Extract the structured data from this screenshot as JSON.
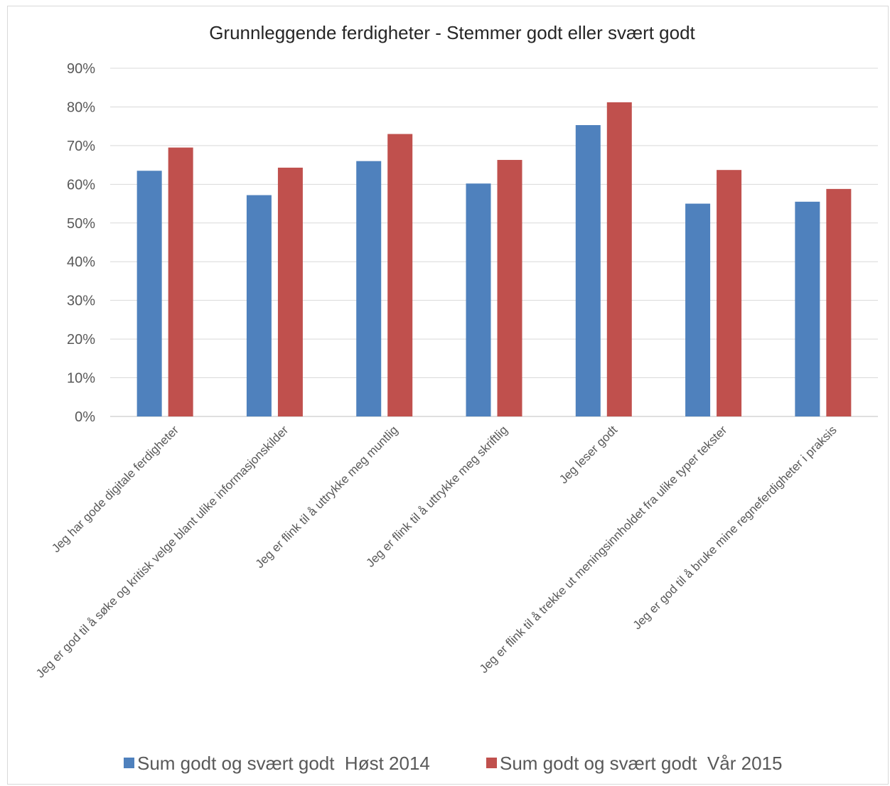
{
  "chart_data": {
    "type": "bar",
    "title": "Grunnleggende ferdigheter - Stemmer godt eller svært godt",
    "categories": [
      "Jeg har gode digitale ferdigheter",
      "Jeg er god til å søke og kritisk velge blant ulike informasjonskilder",
      "Jeg er flink til å uttrykke meg muntlig",
      "Jeg er flink til å uttrykke meg skriftlig",
      "Jeg leser godt",
      "Jeg er flink til å trekke ut meningsinnholdet fra ulike typer tekster",
      "Jeg er god til å bruke mine regneferdigheter i praksis"
    ],
    "series": [
      {
        "name": "Sum godt og svært godt  Høst 2014",
        "color": "#4f81bd",
        "values": [
          63.5,
          57.2,
          66.0,
          60.2,
          75.3,
          55.0,
          55.5
        ]
      },
      {
        "name": "Sum godt og svært godt  Vår 2015",
        "color": "#c0504d",
        "values": [
          69.5,
          64.3,
          73.0,
          66.3,
          81.2,
          63.7,
          58.8
        ]
      }
    ],
    "yticks": [
      "0%",
      "10%",
      "20%",
      "30%",
      "40%",
      "50%",
      "60%",
      "70%",
      "80%",
      "90%"
    ],
    "ylim": [
      0,
      90
    ],
    "grid": true,
    "legend_position": "bottom"
  }
}
